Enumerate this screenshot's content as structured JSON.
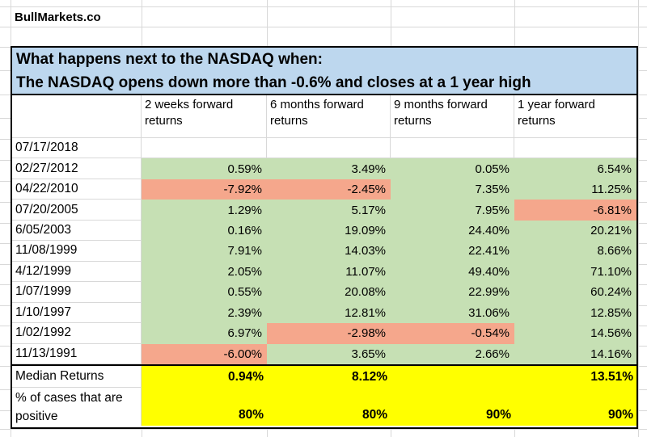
{
  "brand": "BullMarkets.co",
  "title": {
    "line1": "What happens next to the NASDAQ when:",
    "line2": "The NASDAQ opens down more than -0.6% and closes at a 1 year high"
  },
  "table": {
    "columns": [
      "2 weeks forward returns",
      "6 months forward returns",
      "9 months forward returns",
      "1 year forward returns"
    ],
    "rows": [
      {
        "date": "07/17/2018",
        "values": [
          "",
          "",
          "",
          ""
        ],
        "bg": [
          "w",
          "w",
          "w",
          "w"
        ]
      },
      {
        "date": "02/27/2012",
        "values": [
          "0.59%",
          "3.49%",
          "0.05%",
          "6.54%"
        ],
        "bg": [
          "g",
          "g",
          "g",
          "g"
        ]
      },
      {
        "date": "04/22/2010",
        "values": [
          "-7.92%",
          "-2.45%",
          "7.35%",
          "11.25%"
        ],
        "bg": [
          "r",
          "r",
          "g",
          "g"
        ]
      },
      {
        "date": "07/20/2005",
        "values": [
          "1.29%",
          "5.17%",
          "7.95%",
          "-6.81%"
        ],
        "bg": [
          "g",
          "g",
          "g",
          "r"
        ]
      },
      {
        "date": "6/05/2003",
        "values": [
          "0.16%",
          "19.09%",
          "24.40%",
          "20.21%"
        ],
        "bg": [
          "g",
          "g",
          "g",
          "g"
        ]
      },
      {
        "date": "11/08/1999",
        "values": [
          "7.91%",
          "14.03%",
          "22.41%",
          "8.66%"
        ],
        "bg": [
          "g",
          "g",
          "g",
          "g"
        ]
      },
      {
        "date": "4/12/1999",
        "values": [
          "2.05%",
          "11.07%",
          "49.40%",
          "71.10%"
        ],
        "bg": [
          "g",
          "g",
          "g",
          "g"
        ]
      },
      {
        "date": "1/07/1999",
        "values": [
          "0.55%",
          "20.08%",
          "22.99%",
          "60.24%"
        ],
        "bg": [
          "g",
          "g",
          "g",
          "g"
        ]
      },
      {
        "date": "1/10/1997",
        "values": [
          "2.39%",
          "12.81%",
          "31.06%",
          "12.85%"
        ],
        "bg": [
          "g",
          "g",
          "g",
          "g"
        ]
      },
      {
        "date": "1/02/1992",
        "values": [
          "6.97%",
          "-2.98%",
          "-0.54%",
          "14.56%"
        ],
        "bg": [
          "g",
          "r",
          "r",
          "g"
        ]
      },
      {
        "date": "11/13/1991",
        "values": [
          "-6.00%",
          "3.65%",
          "2.66%",
          "14.16%"
        ],
        "bg": [
          "r",
          "g",
          "g",
          "g"
        ]
      }
    ],
    "footer": {
      "median_label": "Median Returns",
      "median_values": [
        "0.94%",
        "8.12%",
        "",
        "13.51%"
      ],
      "positive_label": "% of cases that are positive",
      "positive_values": [
        "80%",
        "80%",
        "90%",
        "90%"
      ]
    }
  },
  "colors": {
    "title_bg": "#bdd7ee",
    "positive_cell": "#c6e0b4",
    "negative_cell": "#f5a78c",
    "highlight_cell": "#ffff00",
    "gridline": "#d8d8d8",
    "border": "#000000"
  }
}
